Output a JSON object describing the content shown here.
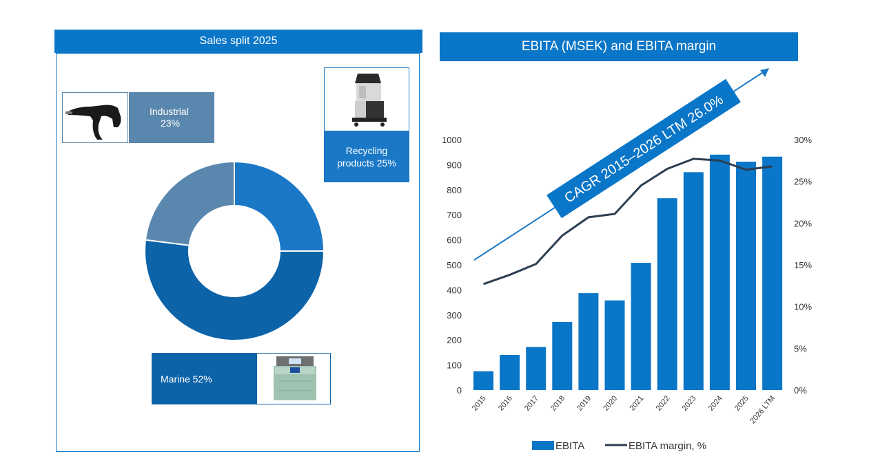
{
  "left": {
    "title": "Sales split 2025",
    "industrial_label": "Industrial",
    "industrial_pct": "23%",
    "recycling_label": "Recycling",
    "recycling_pct": "products 25%",
    "marine_label": "Marine 52%"
  },
  "right": {
    "title": "EBITA (MSEK) and EBITA margin",
    "cagr": "CAGR 2015–2026 LTM 26.0%",
    "legend_bar": "EBITA",
    "legend_line": "EBITA margin, %"
  },
  "colors": {
    "bar": "#0a76c8",
    "line": "#2c3e50",
    "industrial": "#5a87ad",
    "recycling": "#1a78c6",
    "marine": "#0d63a8"
  },
  "chart_data": [
    {
      "type": "pie",
      "title": "Sales split 2025",
      "categories": [
        "Recycling products",
        "Marine",
        "Industrial"
      ],
      "values": [
        25,
        52,
        23
      ]
    },
    {
      "type": "bar",
      "title": "EBITA (MSEK) and EBITA margin",
      "categories": [
        "2015",
        "2016",
        "2017",
        "2018",
        "2019",
        "2020",
        "2021",
        "2022",
        "2023",
        "2024",
        "2025",
        "2026 LTM"
      ],
      "series": [
        {
          "name": "EBITA",
          "type": "bar",
          "axis": "left",
          "values": [
            75,
            140,
            172,
            272,
            387,
            358,
            508,
            766,
            870,
            940,
            912,
            932
          ]
        },
        {
          "name": "EBITA margin, %",
          "type": "line",
          "axis": "right",
          "values": [
            12.7,
            13.8,
            15.1,
            18.5,
            20.7,
            21.1,
            24.5,
            26.5,
            27.7,
            27.5,
            26.4,
            26.8
          ]
        }
      ],
      "ylim": [
        0,
        1000
      ],
      "yticks": [
        "0",
        "100",
        "200",
        "300",
        "400",
        "500",
        "600",
        "700",
        "800",
        "900",
        "1000"
      ],
      "y2lim": [
        0,
        30
      ],
      "y2ticks": [
        "0%",
        "5%",
        "10%",
        "15%",
        "20%",
        "25%",
        "30%"
      ]
    }
  ]
}
